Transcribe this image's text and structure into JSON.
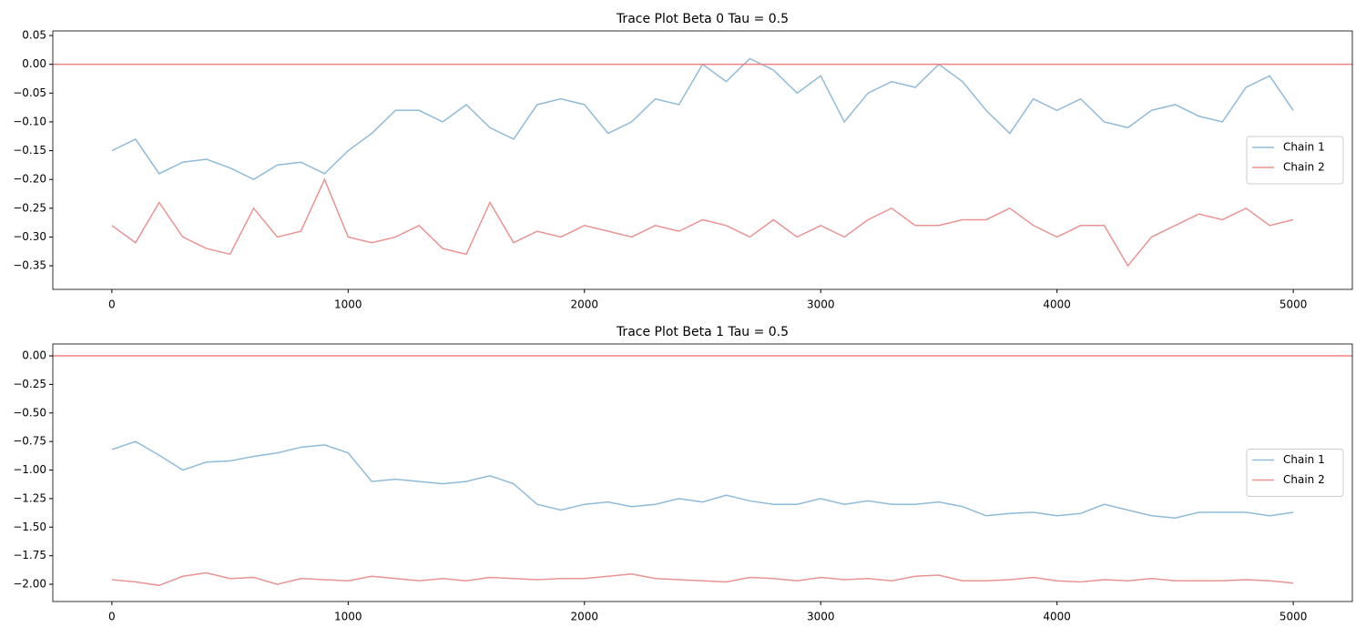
{
  "chart_data": [
    {
      "type": "line",
      "title": "Trace Plot Beta 0 Tau = 0.5",
      "x": [
        0,
        100,
        200,
        300,
        400,
        500,
        600,
        700,
        800,
        900,
        1000,
        1100,
        1200,
        1300,
        1400,
        1500,
        1600,
        1700,
        1800,
        1900,
        2000,
        2100,
        2200,
        2300,
        2400,
        2500,
        2600,
        2700,
        2800,
        2900,
        3000,
        3100,
        3200,
        3300,
        3400,
        3500,
        3600,
        3700,
        3800,
        3900,
        4000,
        4100,
        4200,
        4300,
        4400,
        4500,
        4600,
        4700,
        4800,
        4900,
        5000
      ],
      "series": [
        {
          "name": "Chain 1",
          "color": "#8fbbd9",
          "values": [
            -0.15,
            -0.13,
            -0.19,
            -0.17,
            -0.165,
            -0.18,
            -0.2,
            -0.175,
            -0.17,
            -0.19,
            -0.15,
            -0.12,
            -0.08,
            -0.08,
            -0.1,
            -0.07,
            -0.11,
            -0.13,
            -0.07,
            -0.06,
            -0.07,
            -0.12,
            -0.1,
            -0.06,
            -0.07,
            0.0,
            -0.03,
            0.01,
            -0.01,
            -0.05,
            -0.02,
            -0.1,
            -0.05,
            -0.03,
            -0.04,
            0.0,
            -0.03,
            -0.08,
            -0.12,
            -0.06,
            -0.08,
            -0.06,
            -0.1,
            -0.11,
            -0.08,
            -0.07,
            -0.09,
            -0.1,
            -0.04,
            -0.02,
            -0.08
          ]
        },
        {
          "name": "Chain 2",
          "color": "#ea9393",
          "values": [
            -0.28,
            -0.31,
            -0.24,
            -0.3,
            -0.32,
            -0.33,
            -0.25,
            -0.3,
            -0.29,
            -0.2,
            -0.3,
            -0.31,
            -0.3,
            -0.28,
            -0.32,
            -0.33,
            -0.24,
            -0.31,
            -0.29,
            -0.3,
            -0.28,
            -0.29,
            -0.3,
            -0.28,
            -0.29,
            -0.27,
            -0.28,
            -0.3,
            -0.27,
            -0.3,
            -0.28,
            -0.3,
            -0.27,
            -0.25,
            -0.28,
            -0.28,
            -0.27,
            -0.27,
            -0.25,
            -0.28,
            -0.3,
            -0.28,
            -0.28,
            -0.35,
            -0.3,
            -0.28,
            -0.26,
            -0.27,
            -0.25,
            -0.28,
            -0.27
          ]
        }
      ],
      "hline": {
        "value": 0,
        "color": "#f08080"
      },
      "xlim": [
        -250,
        5250
      ],
      "xticks": [
        0,
        1000,
        2000,
        3000,
        4000,
        5000
      ],
      "ylim": [
        -0.391,
        0.058
      ],
      "yticks": [
        0.05,
        {
          "value": 0,
          "label": "0.00"
        },
        {
          "value": -0.05,
          "label": "−0.05"
        },
        {
          "value": -0.1,
          "label": "−0.10"
        },
        {
          "value": -0.15,
          "label": "−0.15"
        },
        {
          "value": -0.2,
          "label": "−0.20"
        },
        {
          "value": -0.25,
          "label": "−0.25"
        },
        {
          "value": -0.3,
          "label": "−0.30"
        },
        {
          "value": -0.35,
          "label": "−0.35"
        }
      ],
      "legend": "center right"
    },
    {
      "type": "line",
      "title": "Trace Plot Beta 1 Tau = 0.5",
      "x": [
        0,
        100,
        200,
        300,
        400,
        500,
        600,
        700,
        800,
        900,
        1000,
        1100,
        1200,
        1300,
        1400,
        1500,
        1600,
        1700,
        1800,
        1900,
        2000,
        2100,
        2200,
        2300,
        2400,
        2500,
        2600,
        2700,
        2800,
        2900,
        3000,
        3100,
        3200,
        3300,
        3400,
        3500,
        3600,
        3700,
        3800,
        3900,
        4000,
        4100,
        4200,
        4300,
        4400,
        4500,
        4600,
        4700,
        4800,
        4900,
        5000
      ],
      "series": [
        {
          "name": "Chain 1",
          "color": "#8fbbd9",
          "values": [
            -0.82,
            -0.75,
            -0.87,
            -1.0,
            -0.93,
            -0.92,
            -0.88,
            -0.85,
            -0.8,
            -0.78,
            -0.85,
            -1.1,
            -1.08,
            -1.1,
            -1.12,
            -1.1,
            -1.05,
            -1.12,
            -1.3,
            -1.35,
            -1.3,
            -1.28,
            -1.32,
            -1.3,
            -1.25,
            -1.28,
            -1.22,
            -1.27,
            -1.3,
            -1.3,
            -1.25,
            -1.3,
            -1.27,
            -1.3,
            -1.3,
            -1.28,
            -1.32,
            -1.4,
            -1.38,
            -1.37,
            -1.4,
            -1.38,
            -1.3,
            -1.35,
            -1.4,
            -1.42,
            -1.37,
            -1.37,
            -1.37,
            -1.4,
            -1.37
          ]
        },
        {
          "name": "Chain 2",
          "color": "#ea9393",
          "values": [
            -1.96,
            -1.98,
            -2.01,
            -1.93,
            -1.9,
            -1.95,
            -1.94,
            -2.0,
            -1.95,
            -1.96,
            -1.97,
            -1.93,
            -1.95,
            -1.97,
            -1.95,
            -1.97,
            -1.94,
            -1.95,
            -1.96,
            -1.95,
            -1.95,
            -1.93,
            -1.91,
            -1.95,
            -1.96,
            -1.97,
            -1.98,
            -1.94,
            -1.95,
            -1.97,
            -1.94,
            -1.96,
            -1.95,
            -1.97,
            -1.93,
            -1.92,
            -1.97,
            -1.97,
            -1.96,
            -1.94,
            -1.97,
            -1.98,
            -1.96,
            -1.97,
            -1.95,
            -1.97,
            -1.97,
            -1.97,
            -1.96,
            -1.97,
            -1.99
          ]
        }
      ],
      "hline": {
        "value": 0,
        "color": "#f08080"
      },
      "xlim": [
        -250,
        5250
      ],
      "xticks": [
        0,
        1000,
        2000,
        3000,
        4000,
        5000
      ],
      "ylim": [
        -2.151,
        0.104
      ],
      "yticks": [
        {
          "value": 0,
          "label": "0.00"
        },
        {
          "value": -0.25,
          "label": "−0.25"
        },
        {
          "value": -0.5,
          "label": "−0.50"
        },
        {
          "value": -0.75,
          "label": "−0.75"
        },
        {
          "value": -1,
          "label": "−1.00"
        },
        {
          "value": -1.25,
          "label": "−1.25"
        },
        {
          "value": -1.5,
          "label": "−1.50"
        },
        {
          "value": -1.75,
          "label": "−1.75"
        },
        {
          "value": -2,
          "label": "−2.00"
        }
      ],
      "legend": "center right"
    }
  ]
}
